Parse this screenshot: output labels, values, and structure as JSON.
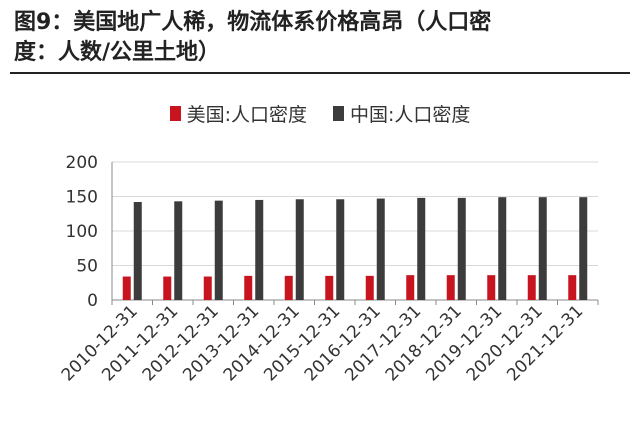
{
  "title": {
    "line1": "图9：美国地广人稀，物流体系价格高昂（人口密",
    "line2": "度：人数/公里土地）"
  },
  "colors": {
    "usa": "#c8141e",
    "china": "#3c3c3c",
    "axis": "#888888",
    "grid": "#d9d9d9"
  },
  "chart_data": {
    "type": "bar",
    "title": "图9：美国地广人稀，物流体系价格高昂（人口密度：人数/公里土地）",
    "xlabel": "",
    "ylabel": "",
    "ylim": [
      0,
      200
    ],
    "yticks": [
      0,
      50,
      100,
      150,
      200
    ],
    "grid": true,
    "legend_position": "top-center",
    "categories": [
      "2010-12-31",
      "2011-12-31",
      "2012-12-31",
      "2013-12-31",
      "2014-12-31",
      "2015-12-31",
      "2016-12-31",
      "2017-12-31",
      "2018-12-31",
      "2019-12-31",
      "2020-12-31",
      "2021-12-31"
    ],
    "series": [
      {
        "name": "美国:人口密度",
        "values": [
          34,
          34,
          34,
          35,
          35,
          35,
          35,
          36,
          36,
          36,
          36,
          36
        ]
      },
      {
        "name": "中国:人口密度",
        "values": [
          142,
          143,
          144,
          145,
          146,
          146,
          147,
          148,
          148,
          149,
          149,
          149
        ]
      }
    ]
  }
}
